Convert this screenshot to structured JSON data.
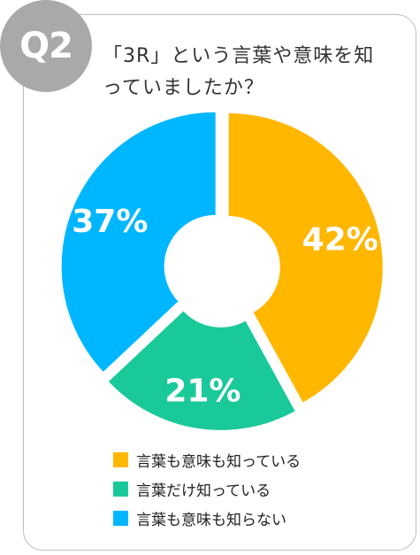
{
  "badge": "Q2",
  "question": "「3R」という言葉や意味を知っていましたか？",
  "chart_data": {
    "type": "pie",
    "donut": true,
    "series": [
      {
        "name": "言葉も意味も知っている",
        "value": 42,
        "label": "42%",
        "color": "#FFB700"
      },
      {
        "name": "言葉だけ知っている",
        "value": 21,
        "label": "21%",
        "color": "#1AC99A"
      },
      {
        "name": "言葉も意味も知らない",
        "value": 37,
        "label": "37%",
        "color": "#00B7FF"
      }
    ],
    "legend_position": "bottom"
  }
}
